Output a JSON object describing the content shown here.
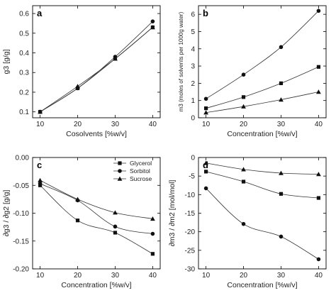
{
  "chart_data": [
    {
      "panel": "a",
      "type": "line",
      "x": [
        10,
        20,
        30,
        40
      ],
      "xlim": [
        8,
        42
      ],
      "ylim": [
        0.07,
        0.64
      ],
      "xticks": [
        "10",
        "20",
        "30",
        "40"
      ],
      "yticks": [
        "0.1",
        "0.2",
        "0.3",
        "0.4",
        "0.5",
        "0.6"
      ],
      "xlabel": "Cosolvents [%w/v]",
      "ylabel": "g3 [g/g]",
      "series": [
        {
          "marker": "square",
          "values": [
            0.1,
            0.22,
            0.37,
            0.53
          ]
        },
        {
          "marker": "circle",
          "values": [
            0.1,
            0.22,
            0.38,
            0.56
          ]
        },
        {
          "marker": "triangle",
          "values": [
            0.1,
            0.23,
            0.37,
            0.53
          ]
        }
      ]
    },
    {
      "panel": "b",
      "type": "line",
      "x": [
        10,
        20,
        30,
        40
      ],
      "xlim": [
        8,
        42
      ],
      "ylim": [
        0,
        6.5
      ],
      "xticks": [
        "10",
        "20",
        "30",
        "40"
      ],
      "yticks": [
        "0",
        "1",
        "2",
        "3",
        "4",
        "5",
        "6"
      ],
      "xlabel": "Concentration [%w/v]",
      "ylabel": "m3 (moles of solvents per 1000g water)",
      "series": [
        {
          "marker": "circle",
          "values": [
            1.1,
            2.5,
            4.1,
            6.2
          ]
        },
        {
          "marker": "square",
          "values": [
            0.55,
            1.2,
            2.0,
            2.95
          ]
        },
        {
          "marker": "triangle",
          "values": [
            0.3,
            0.65,
            1.05,
            1.5
          ]
        }
      ]
    },
    {
      "panel": "c",
      "type": "line",
      "x": [
        10,
        20,
        30,
        40
      ],
      "xlim": [
        8,
        42
      ],
      "ylim": [
        -0.2,
        0
      ],
      "xticks": [
        "10",
        "20",
        "30",
        "40"
      ],
      "yticks": [
        "0.00",
        "-0.05",
        "-0.10",
        "-0.15",
        "-0.20"
      ],
      "xlabel": "Concentration [%w/v]",
      "ylabel": "∂g3 / ∂g2 [g/g]",
      "legend": "top-right",
      "series": [
        {
          "name": "Glycerol",
          "marker": "square",
          "values": [
            -0.05,
            -0.113,
            -0.135,
            -0.173
          ]
        },
        {
          "name": "Sorbitol",
          "marker": "circle",
          "values": [
            -0.047,
            -0.077,
            -0.124,
            -0.137
          ]
        },
        {
          "name": "Sucrose",
          "marker": "triangle",
          "values": [
            -0.041,
            -0.075,
            -0.099,
            -0.11
          ]
        }
      ]
    },
    {
      "panel": "d",
      "type": "line",
      "x": [
        10,
        20,
        30,
        40
      ],
      "xlim": [
        8,
        42
      ],
      "ylim": [
        -30,
        0
      ],
      "xticks": [
        "10",
        "20",
        "30",
        "40"
      ],
      "yticks": [
        "0",
        "-5",
        "-10",
        "-15",
        "-20",
        "-25",
        "-30"
      ],
      "xlabel": "Concentration [%w/v]",
      "ylabel": "∂m3 / ∂m2 [mol/mol]",
      "series": [
        {
          "marker": "triangle",
          "values": [
            -1.5,
            -3.2,
            -4.2,
            -4.5
          ]
        },
        {
          "marker": "square",
          "values": [
            -3.8,
            -6.5,
            -9.8,
            -10.9
          ]
        },
        {
          "marker": "circle",
          "values": [
            -8.3,
            -17.9,
            -21.3,
            -27.4
          ]
        }
      ]
    }
  ]
}
